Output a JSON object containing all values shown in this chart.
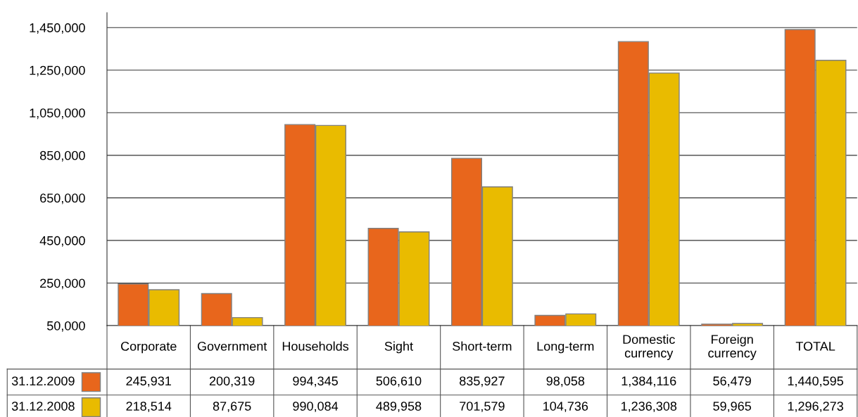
{
  "chart_data": {
    "type": "bar",
    "categories": [
      "Corporate",
      "Government",
      "Households",
      "Sight",
      "Short-term",
      "Long-term",
      "Domestic currency",
      "Foreign currency",
      "TOTAL"
    ],
    "series": [
      {
        "name": "31.12.2009",
        "color": "#e8661c",
        "values": [
          245931,
          200319,
          994345,
          506610,
          835927,
          98058,
          1384116,
          56479,
          1440595
        ],
        "value_labels": [
          "245,931",
          "200,319",
          "994,345",
          "506,610",
          "835,927",
          "98,058",
          "1,384,116",
          "56,479",
          "1,440,595"
        ]
      },
      {
        "name": "31.12.2008",
        "color": "#e9bb00",
        "values": [
          218514,
          87675,
          990084,
          489958,
          701579,
          104736,
          1236308,
          59965,
          1296273
        ],
        "value_labels": [
          "218,514",
          "87,675",
          "990,084",
          "489,958",
          "701,579",
          "104,736",
          "1,236,308",
          "59,965",
          "1,296,273"
        ]
      }
    ],
    "ylim": [
      50000,
      1520000
    ],
    "yticks": [
      {
        "value": 50000,
        "label": "50,000"
      },
      {
        "value": 250000,
        "label": "250,000"
      },
      {
        "value": 450000,
        "label": "450,000"
      },
      {
        "value": 650000,
        "label": "650,000"
      },
      {
        "value": 850000,
        "label": "850,000"
      },
      {
        "value": 1050000,
        "label": "1,050,000"
      },
      {
        "value": 1250000,
        "label": "1,250,000"
      },
      {
        "value": 1450000,
        "label": "1,450,000"
      }
    ],
    "grid": "y",
    "legend": "bottom"
  }
}
